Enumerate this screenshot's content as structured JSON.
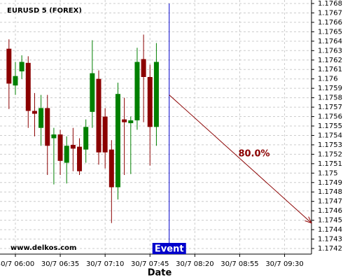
{
  "chart_data": {
    "type": "candlestick",
    "title": "EURUSD 5 (FOREX)",
    "watermark": "www.delkos.com",
    "x_label": "Date",
    "x": [
      "30/7 05:55",
      "30/7 06:00",
      "30/7 06:05",
      "30/7 06:10",
      "30/7 06:15",
      "30/7 06:20",
      "30/7 06:25",
      "30/7 06:30",
      "30/7 06:35",
      "30/7 06:40",
      "30/7 06:45",
      "30/7 06:50",
      "30/7 06:55",
      "30/7 07:00",
      "30/7 07:05",
      "30/7 07:10",
      "30/7 07:15",
      "30/7 07:20",
      "30/7 07:25",
      "30/7 07:30",
      "30/7 07:35",
      "30/7 07:40",
      "30/7 07:45",
      "30/7 07:50"
    ],
    "open": [
      1.17632,
      1.17593,
      1.17608,
      1.17617,
      1.17566,
      1.17548,
      1.17569,
      1.17537,
      1.17541,
      1.17511,
      1.1753,
      1.17528,
      1.17525,
      1.17565,
      1.176,
      1.1756,
      1.17525,
      1.17485,
      1.17557,
      1.17553,
      1.17556,
      1.17621,
      1.17602,
      1.17549
    ],
    "high": [
      1.17642,
      1.17618,
      1.17625,
      1.17624,
      1.17585,
      1.17583,
      1.17583,
      1.17548,
      1.17546,
      1.17539,
      1.17548,
      1.17537,
      1.17557,
      1.17641,
      1.17609,
      1.17569,
      1.17535,
      1.17596,
      1.1758,
      1.1756,
      1.17633,
      1.17647,
      1.17615,
      1.17638
    ],
    "low": [
      1.17568,
      1.17583,
      1.176,
      1.17548,
      1.17539,
      1.17529,
      1.17498,
      1.17488,
      1.17498,
      1.17489,
      1.17502,
      1.17498,
      1.17511,
      1.17548,
      1.17509,
      1.17505,
      1.17447,
      1.17472,
      1.17498,
      1.17499,
      1.17546,
      1.17554,
      1.17508,
      1.17529
    ],
    "close": [
      1.17595,
      1.17603,
      1.17618,
      1.17566,
      1.17563,
      1.17569,
      1.17529,
      1.17541,
      1.17513,
      1.17529,
      1.17526,
      1.17502,
      1.17549,
      1.17606,
      1.17522,
      1.17522,
      1.17485,
      1.17584,
      1.17554,
      1.17556,
      1.17618,
      1.17602,
      1.17549,
      1.17618
    ],
    "up_color": "#008000",
    "down_color": "#8b0000",
    "xlim": [
      "30/7 05:48",
      "30/7 09:51"
    ],
    "xticks": [
      "30/7 06:00",
      "30/7 06:35",
      "30/7 07:10",
      "30/7 07:45",
      "30/7 08:20",
      "30/7 08:55",
      "30/7 09:30"
    ],
    "ylim": [
      1.1742,
      1.1768
    ],
    "yticks": [
      1.1742,
      1.1743,
      1.1744,
      1.1745,
      1.1746,
      1.1747,
      1.1748,
      1.1749,
      1.175,
      1.1751,
      1.1752,
      1.1753,
      1.1754,
      1.1755,
      1.1756,
      1.1757,
      1.1758,
      1.1759,
      1.176,
      1.1761,
      1.1762,
      1.1763,
      1.1764,
      1.1765,
      1.1766,
      1.1767,
      1.1768
    ],
    "grid": true,
    "event": {
      "x": "30/7 08:00",
      "label": "Event",
      "color": "#0000cc"
    },
    "forecast": {
      "x": [
        "30/7 08:00",
        "30/7 09:51"
      ],
      "y": [
        1.17583,
        1.17447
      ],
      "label": "80.0%",
      "color": "#8b0000"
    }
  }
}
